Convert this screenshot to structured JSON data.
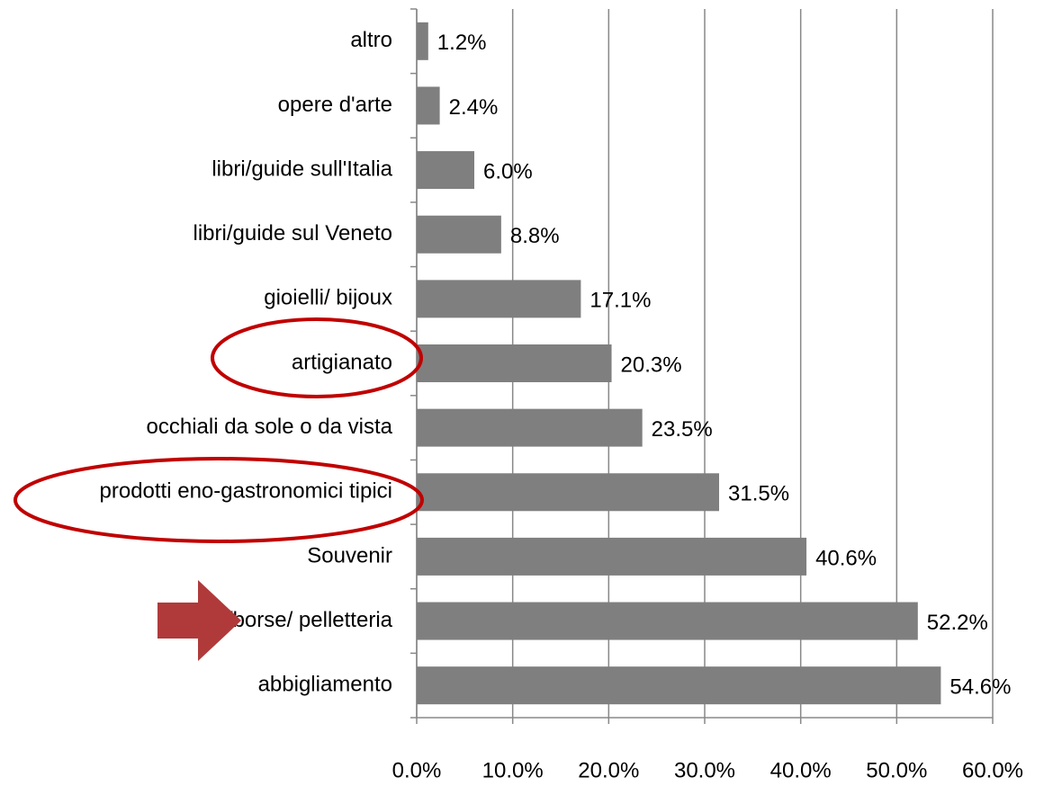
{
  "chart_data": {
    "type": "hbar",
    "categories": [
      "altro",
      "opere d'arte",
      "libri/guide sull'Italia",
      "libri/guide sul Veneto",
      "gioielli/ bijoux",
      "artigianato",
      "occhiali da sole o da vista",
      "prodotti eno-gastronomici  tipici",
      "Souvenir",
      "scarpe/borse/ pelletteria",
      "abbigliamento"
    ],
    "values": [
      1.2,
      2.4,
      6.0,
      8.8,
      17.1,
      20.3,
      23.5,
      31.5,
      40.6,
      52.2,
      54.6
    ],
    "value_labels": [
      "1.2%",
      "2.4%",
      "6.0%",
      "8.8%",
      "17.1%",
      "20.3%",
      "23.5%",
      "31.5%",
      "40.6%",
      "52.2%",
      "54.6%"
    ],
    "color": "#7f7f7f",
    "xlim": [
      0,
      60
    ],
    "xticks": [
      {
        "value": 0,
        "label": "0.0%"
      },
      {
        "value": 10,
        "label": "10.0%"
      },
      {
        "value": 20,
        "label": "20.0%"
      },
      {
        "value": 30,
        "label": "30.0%"
      },
      {
        "value": 40,
        "label": "40.0%"
      },
      {
        "value": 50,
        "label": "50.0%"
      },
      {
        "value": 60,
        "label": "60.0%"
      }
    ],
    "grid": true
  }
}
